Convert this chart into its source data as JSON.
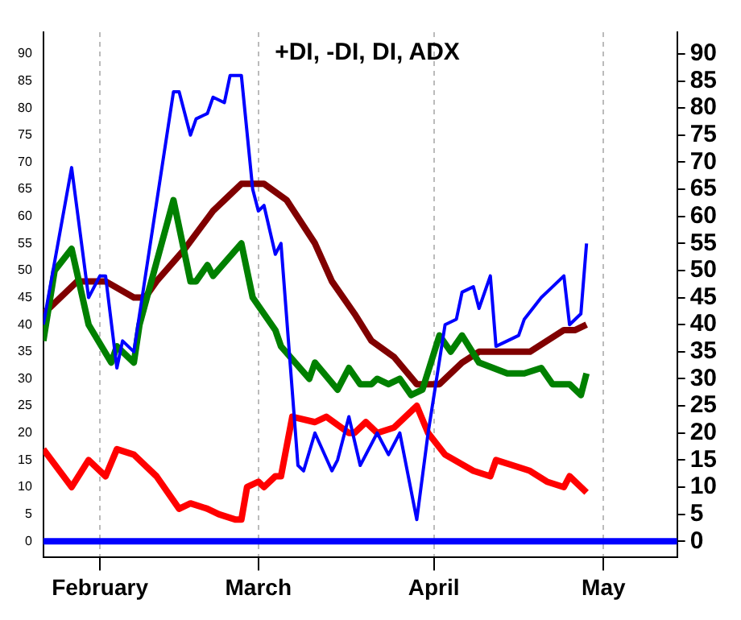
{
  "chart_data": {
    "type": "line",
    "title": "+DI, -DI, DI, ADX",
    "xlim": [
      "--01-22",
      "--05-14"
    ],
    "xticks": [
      {
        "value": "--02-01",
        "label": "February"
      },
      {
        "value": "--03-01",
        "label": "March"
      },
      {
        "value": "--04-01",
        "label": "April"
      },
      {
        "value": "--05-01",
        "label": "May"
      }
    ],
    "ylim": [
      -3,
      94
    ],
    "yticks": [
      0,
      5,
      10,
      15,
      20,
      25,
      30,
      35,
      40,
      45,
      50,
      55,
      60,
      65,
      70,
      75,
      80,
      85,
      90
    ],
    "y2lim": [
      -3,
      94
    ],
    "y2ticks": [
      0,
      5,
      10,
      15,
      20,
      25,
      30,
      35,
      40,
      45,
      50,
      55,
      60,
      65,
      70,
      75,
      80,
      85,
      90
    ],
    "grid": "x",
    "legend": false,
    "marker": "none",
    "ref_lines": [
      {
        "axis": "y",
        "value": 0,
        "color": "#0000ff"
      }
    ],
    "series": [
      {
        "color": "#0000ff",
        "x": [
          "--01-22",
          "--01-27",
          "--01-30",
          "--02-01",
          "--02-02",
          "--02-04",
          "--02-05",
          "--02-07",
          "--02-14",
          "--02-15",
          "--02-17",
          "--02-18",
          "--02-20",
          "--02-21",
          "--02-23",
          "--02-24",
          "--02-26",
          "--02-28",
          "--03-01",
          "--03-02",
          "--03-04",
          "--03-05",
          "--03-08",
          "--03-09",
          "--03-11",
          "--03-14",
          "--03-15",
          "--03-17",
          "--03-19",
          "--03-22",
          "--03-24",
          "--03-26",
          "--03-29",
          "--03-31",
          "--04-03",
          "--04-05",
          "--04-06",
          "--04-08",
          "--04-09",
          "--04-11",
          "--04-12",
          "--04-14",
          "--04-16",
          "--04-17",
          "--04-20",
          "--04-22",
          "--04-24",
          "--04-25",
          "--04-27",
          "--04-28"
        ],
        "values": [
          40,
          69,
          45,
          49,
          49,
          32,
          37,
          35,
          83,
          83,
          75,
          78,
          79,
          82,
          81,
          86,
          86,
          65,
          61,
          62,
          53,
          55,
          14,
          13,
          20,
          13,
          15,
          23,
          14,
          20,
          16,
          20,
          4,
          20,
          40,
          41,
          46,
          47,
          43,
          49,
          36,
          37,
          38,
          41,
          45,
          47,
          49,
          40,
          42,
          55
        ]
      },
      {
        "color": "#008000",
        "x": [
          "--01-22",
          "--01-24",
          "--01-27",
          "--01-30",
          "--02-03",
          "--02-04",
          "--02-07",
          "--02-08",
          "--02-14",
          "--02-17",
          "--02-18",
          "--02-20",
          "--02-21",
          "--02-26",
          "--02-28",
          "--03-04",
          "--03-05",
          "--03-10",
          "--03-11",
          "--03-15",
          "--03-17",
          "--03-19",
          "--03-21",
          "--03-22",
          "--03-24",
          "--03-26",
          "--03-28",
          "--03-30",
          "--04-02",
          "--04-04",
          "--04-06",
          "--04-09",
          "--04-14",
          "--04-17",
          "--04-20",
          "--04-22",
          "--04-25",
          "--04-27",
          "--04-28"
        ],
        "values": [
          37,
          50,
          54,
          40,
          33,
          36,
          33,
          40,
          63,
          48,
          48,
          51,
          49,
          55,
          45,
          39,
          36,
          30,
          33,
          28,
          32,
          29,
          29,
          30,
          29,
          30,
          27,
          28,
          38,
          35,
          38,
          33,
          31,
          31,
          32,
          29,
          29,
          27,
          31
        ]
      },
      {
        "color": "#800000",
        "x": [
          "--01-22",
          "--01-24",
          "--01-28",
          "--02-02",
          "--02-07",
          "--02-09",
          "--02-11",
          "--02-16",
          "--02-21",
          "--02-23",
          "--02-26",
          "--03-02",
          "--03-06",
          "--03-11",
          "--03-14",
          "--03-18",
          "--03-21",
          "--03-25",
          "--03-29",
          "--04-02",
          "--04-06",
          "--04-09",
          "--04-18",
          "--04-24",
          "--04-26",
          "--04-28"
        ],
        "values": [
          42,
          44,
          48,
          48,
          45,
          45,
          48,
          54,
          61,
          63,
          66,
          66,
          63,
          55,
          48,
          42,
          37,
          34,
          29,
          29,
          33,
          35,
          35,
          39,
          39,
          40
        ]
      },
      {
        "color": "#ff0000",
        "x": [
          "--01-22",
          "--01-27",
          "--01-30",
          "--02-02",
          "--02-04",
          "--02-07",
          "--02-11",
          "--02-15",
          "--02-17",
          "--02-20",
          "--02-22",
          "--02-25",
          "--02-26",
          "--02-27",
          "--03-01",
          "--03-02",
          "--03-04",
          "--03-05",
          "--03-07",
          "--03-11",
          "--03-13",
          "--03-17",
          "--03-18",
          "--03-20",
          "--03-22",
          "--03-25",
          "--03-29",
          "--03-31",
          "--04-03",
          "--04-08",
          "--04-11",
          "--04-12",
          "--04-15",
          "--04-18",
          "--04-21",
          "--04-24",
          "--04-25",
          "--04-28"
        ],
        "values": [
          17,
          10,
          15,
          12,
          17,
          16,
          12,
          6,
          7,
          6,
          5,
          4,
          4,
          10,
          11,
          10,
          12,
          12,
          23,
          22,
          23,
          20,
          20,
          22,
          20,
          21,
          25,
          20,
          16,
          13,
          12,
          15,
          14,
          13,
          11,
          10,
          12,
          9
        ]
      }
    ]
  }
}
